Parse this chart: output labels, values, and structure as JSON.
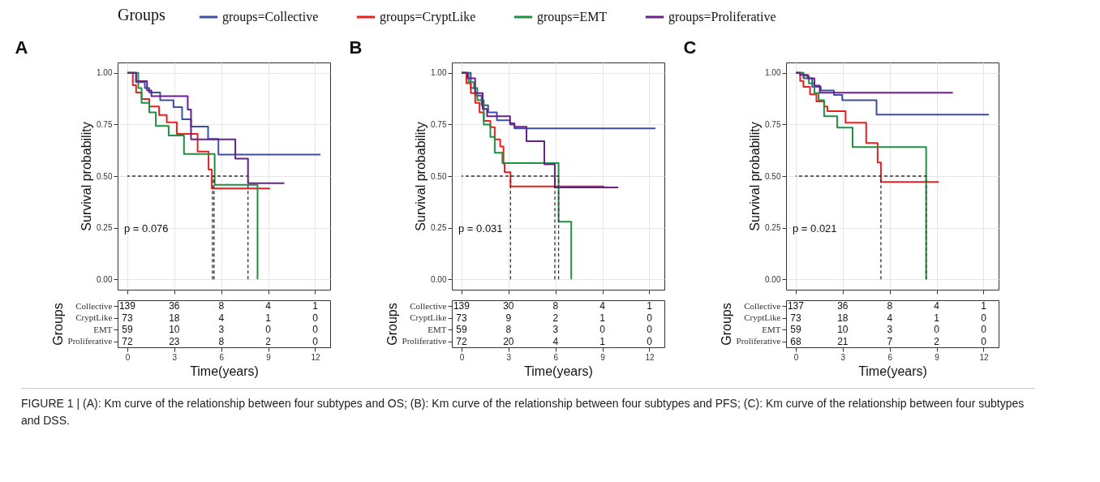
{
  "chart_data": [
    {
      "type": "step",
      "title": "A",
      "ylabel": "Survival probability",
      "legend_title": "Groups",
      "legend": "top",
      "grid": true,
      "tick_labels": "y",
      "xlim": [
        -0.62,
        12.96
      ],
      "xticks": [
        0,
        3,
        6,
        9,
        12
      ],
      "ylim": [
        -0.05,
        1.05
      ],
      "yticks": [
        {
          "value": 0,
          "label": "0.00"
        },
        {
          "value": 0.25,
          "label": "0.25"
        },
        {
          "value": 0.5,
          "label": "0.50"
        },
        {
          "value": 0.75,
          "label": "0.75"
        },
        {
          "value": 1,
          "label": "1.00"
        }
      ],
      "annotations": [
        "p = 0.076"
      ],
      "series": [
        {
          "name": "groups=Collective",
          "color": "#3c4fa0",
          "x": [
            0,
            0.56,
            1.12,
            1.4,
            2.1,
            2.95,
            3.5,
            4.07,
            5.16,
            5.82,
            12.34
          ],
          "values": [
            1,
            0.955,
            0.926,
            0.905,
            0.867,
            0.834,
            0.775,
            0.74,
            0.68,
            0.604,
            0.604
          ]
        },
        {
          "name": "groups=CryptLike",
          "color": "#e8201f",
          "x": [
            0,
            0.35,
            0.56,
            0.91,
            1.4,
            2.03,
            2.52,
            3.16,
            4.49,
            5.19,
            5.4,
            9.12
          ],
          "values": [
            1,
            0.94,
            0.905,
            0.873,
            0.837,
            0.796,
            0.76,
            0.704,
            0.619,
            0.531,
            0.44,
            0.44
          ]
        },
        {
          "name": "groups=EMT",
          "color": "#1e9142",
          "x": [
            0,
            0.7,
            0.91,
            1.4,
            1.82,
            2.64,
            3.62,
            5.58,
            8.32
          ],
          "values": [
            1,
            0.926,
            0.855,
            0.808,
            0.743,
            0.696,
            0.607,
            0.458,
            0
          ]
        },
        {
          "name": "groups=Proliferative",
          "color": "#6a1f8a",
          "x": [
            0,
            0.56,
            1.26,
            1.54,
            3.86,
            4.07,
            6.9,
            7.71,
            10.03
          ],
          "values": [
            1,
            0.96,
            0.914,
            0.887,
            0.822,
            0.678,
            0.584,
            0.466,
            0.466
          ]
        },
        {
          "type": "line",
          "line_style": "dashed",
          "color": "#333333",
          "x": [
            0,
            7.71,
            7.71
          ],
          "values": [
            0.5,
            0.5,
            0
          ]
        },
        {
          "type": "line",
          "line_style": "dashed",
          "color": "#333333",
          "x": [
            5.44,
            5.44
          ],
          "values": [
            0.5,
            0
          ]
        },
        {
          "type": "line",
          "line_style": "dashed",
          "color": "#333333",
          "x": [
            5.54,
            5.54
          ],
          "values": [
            0.5,
            0
          ]
        }
      ]
    },
    {
      "type": "heatmap",
      "xlabel": "Time(years)",
      "ylabel": "Groups",
      "xlim": [
        -0.62,
        12.96
      ],
      "xticks": [
        0,
        3,
        6,
        9,
        12
      ],
      "x": [
        0,
        3,
        6,
        9,
        12
      ],
      "y_categories": [
        "Collective",
        "CryptLike",
        "EMT",
        "Proliferative"
      ],
      "data_labels": true,
      "cells": [
        [
          139,
          36,
          8,
          4,
          1
        ],
        [
          73,
          18,
          4,
          1,
          0
        ],
        [
          59,
          10,
          3,
          0,
          0
        ],
        [
          72,
          23,
          8,
          2,
          0
        ]
      ]
    },
    {
      "type": "step",
      "title": "B",
      "ylabel": "Survival probability",
      "grid": true,
      "tick_labels": "y",
      "xlim": [
        -0.62,
        12.96
      ],
      "xticks": [
        0,
        3,
        6,
        9,
        12
      ],
      "ylim": [
        -0.05,
        1.05
      ],
      "yticks": [
        {
          "value": 0,
          "label": "0.00"
        },
        {
          "value": 0.25,
          "label": "0.25"
        },
        {
          "value": 0.5,
          "label": "0.50"
        },
        {
          "value": 0.75,
          "label": "0.75"
        },
        {
          "value": 1,
          "label": "1.00"
        }
      ],
      "annotations": [
        "p = 0.031"
      ],
      "series": [
        {
          "name": "groups=Collective",
          "color": "#3c4fa0",
          "x": [
            0,
            0.59,
            0.87,
            1.28,
            1.7,
            2.26,
            3.1,
            3.38,
            12.39
          ],
          "values": [
            1,
            0.926,
            0.89,
            0.843,
            0.808,
            0.77,
            0.749,
            0.731,
            0.731
          ]
        },
        {
          "name": "groups=CryptLike",
          "color": "#e8201f",
          "x": [
            0,
            0.31,
            0.59,
            0.87,
            1.15,
            1.42,
            1.84,
            2.12,
            2.47,
            2.68,
            2.75,
            3.13,
            9.11
          ],
          "values": [
            1,
            0.95,
            0.902,
            0.855,
            0.808,
            0.767,
            0.737,
            0.678,
            0.643,
            0.56,
            0.519,
            0.45,
            0.45
          ]
        },
        {
          "name": "groups=EMT",
          "color": "#1e9142",
          "x": [
            0,
            0.45,
            0.8,
            1.01,
            1.42,
            1.84,
            2.12,
            2.61,
            6.2,
            7.01
          ],
          "values": [
            1,
            0.955,
            0.926,
            0.867,
            0.749,
            0.69,
            0.613,
            0.563,
            0.279,
            0
          ]
        },
        {
          "name": "groups=Proliferative",
          "color": "#6a1f8a",
          "x": [
            0,
            0.38,
            0.87,
            1.35,
            1.63,
            3.1,
            3.38,
            4.15,
            5.29,
            5.96,
            10.01
          ],
          "values": [
            1,
            0.973,
            0.902,
            0.825,
            0.79,
            0.755,
            0.739,
            0.669,
            0.557,
            0.445,
            0.445
          ]
        },
        {
          "type": "line",
          "line_style": "dashed",
          "color": "#333333",
          "x": [
            0,
            6.2,
            6.2
          ],
          "values": [
            0.5,
            0.5,
            0
          ]
        },
        {
          "type": "line",
          "line_style": "dashed",
          "color": "#333333",
          "x": [
            3.13,
            3.13
          ],
          "values": [
            0.5,
            0
          ]
        },
        {
          "type": "line",
          "line_style": "dashed",
          "color": "#333333",
          "x": [
            5.96,
            5.96
          ],
          "values": [
            0.5,
            0
          ]
        }
      ]
    },
    {
      "type": "heatmap",
      "xlabel": "Time(years)",
      "ylabel": "Groups",
      "xlim": [
        -0.62,
        12.96
      ],
      "xticks": [
        0,
        3,
        6,
        9,
        12
      ],
      "x": [
        0,
        3,
        6,
        9,
        12
      ],
      "y_categories": [
        "Collective",
        "CryptLike",
        "EMT",
        "Proliferative"
      ],
      "data_labels": true,
      "cells": [
        [
          139,
          30,
          8,
          4,
          1
        ],
        [
          73,
          9,
          2,
          1,
          0
        ],
        [
          59,
          8,
          3,
          0,
          0
        ],
        [
          72,
          20,
          4,
          1,
          0
        ]
      ]
    },
    {
      "type": "step",
      "title": "C",
      "ylabel": "Survival probability",
      "grid": true,
      "tick_labels": "y",
      "xlim": [
        -0.62,
        12.96
      ],
      "xticks": [
        0,
        3,
        6,
        9,
        12
      ],
      "ylim": [
        -0.05,
        1.05
      ],
      "yticks": [
        {
          "value": 0,
          "label": "0.00"
        },
        {
          "value": 0.25,
          "label": "0.25"
        },
        {
          "value": 0.5,
          "label": "0.50"
        },
        {
          "value": 0.75,
          "label": "0.75"
        },
        {
          "value": 1,
          "label": "1.00"
        }
      ],
      "annotations": [
        "p = 0.021"
      ],
      "series": [
        {
          "name": "groups=Collective",
          "color": "#3c4fa0",
          "x": [
            0,
            0.49,
            1.05,
            1.6,
            2.44,
            2.97,
            5.16,
            12.34
          ],
          "values": [
            1,
            0.973,
            0.932,
            0.914,
            0.893,
            0.867,
            0.798,
            0.798
          ]
        },
        {
          "name": "groups=CryptLike",
          "color": "#e8201f",
          "x": [
            0,
            0.28,
            0.49,
            0.91,
            1.32,
            1.81,
            2.02,
            3.18,
            4.5,
            5.23,
            5.44,
            9.14
          ],
          "values": [
            1,
            0.961,
            0.932,
            0.896,
            0.861,
            0.837,
            0.814,
            0.758,
            0.66,
            0.566,
            0.472,
            0.472
          ]
        },
        {
          "name": "groups=EMT",
          "color": "#1e9142",
          "x": [
            0,
            0.49,
            0.84,
            1.19,
            1.46,
            1.81,
            2.65,
            3.63,
            8.33
          ],
          "values": [
            1,
            0.985,
            0.949,
            0.902,
            0.867,
            0.79,
            0.735,
            0.64,
            0
          ]
        },
        {
          "name": "groups=Proliferative",
          "color": "#6a1f8a",
          "x": [
            0,
            0.28,
            0.77,
            1.19,
            1.53,
            10.04
          ],
          "values": [
            1,
            0.99,
            0.973,
            0.938,
            0.904,
            0.904
          ]
        },
        {
          "type": "line",
          "line_style": "dashed",
          "color": "#333333",
          "x": [
            0,
            8.33,
            8.33
          ],
          "values": [
            0.5,
            0.5,
            0
          ]
        },
        {
          "type": "line",
          "line_style": "dashed",
          "color": "#333333",
          "x": [
            5.44,
            5.44
          ],
          "values": [
            0.5,
            0
          ]
        }
      ]
    },
    {
      "type": "heatmap",
      "xlabel": "Time(years)",
      "ylabel": "Groups",
      "xlim": [
        -0.62,
        12.96
      ],
      "xticks": [
        0,
        3,
        6,
        9,
        12
      ],
      "x": [
        0,
        3,
        6,
        9,
        12
      ],
      "y_categories": [
        "Collective",
        "CryptLike",
        "EMT",
        "Proliferative"
      ],
      "data_labels": true,
      "cells": [
        [
          137,
          36,
          8,
          4,
          1
        ],
        [
          73,
          18,
          4,
          1,
          0
        ],
        [
          59,
          10,
          3,
          0,
          0
        ],
        [
          68,
          21,
          7,
          2,
          0
        ]
      ],
      "annotations": [
        "FIGURE 1 | (A): Km curve of the relationship between four subtypes and OS; (B): Km curve of the relationship between four subtypes and PFS; (C): Km curve of the relationship between four subtypes and DSS."
      ]
    }
  ]
}
